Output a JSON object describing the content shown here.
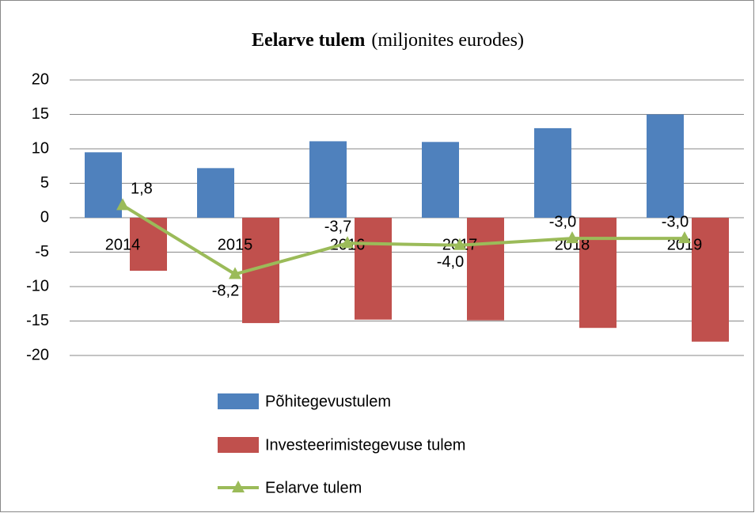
{
  "chart_data": {
    "type": "bar_line",
    "title": "Eelarve tulem",
    "title_note": "(miljonites eurodes)",
    "categories": [
      "2014",
      "2015",
      "2016",
      "2017",
      "2018",
      "2019"
    ],
    "series": [
      {
        "name": "Põhitegevustulem",
        "type": "bar",
        "color": "#4f81bd",
        "values": [
          9.5,
          7.2,
          11.1,
          11.0,
          13.0,
          15.0
        ]
      },
      {
        "name": "Investeerimistegevuse tulem",
        "type": "bar",
        "color": "#c0504d",
        "values": [
          -7.7,
          -15.3,
          -14.8,
          -14.9,
          -16.0,
          -18.0
        ]
      },
      {
        "name": "Eelarve tulem",
        "type": "line",
        "color": "#9bbb59",
        "values": [
          1.8,
          -8.2,
          -3.7,
          -4.0,
          -3.0,
          -3.0
        ],
        "value_labels": [
          "1,8",
          "-8,2",
          "-3,7",
          "-4,0",
          "-3,0",
          "-3,0"
        ]
      }
    ],
    "ylim": [
      -20,
      20
    ],
    "yticks": [
      -20,
      -15,
      -10,
      -5,
      0,
      5,
      10,
      15,
      20
    ],
    "grid": true,
    "legend": "bottom"
  }
}
